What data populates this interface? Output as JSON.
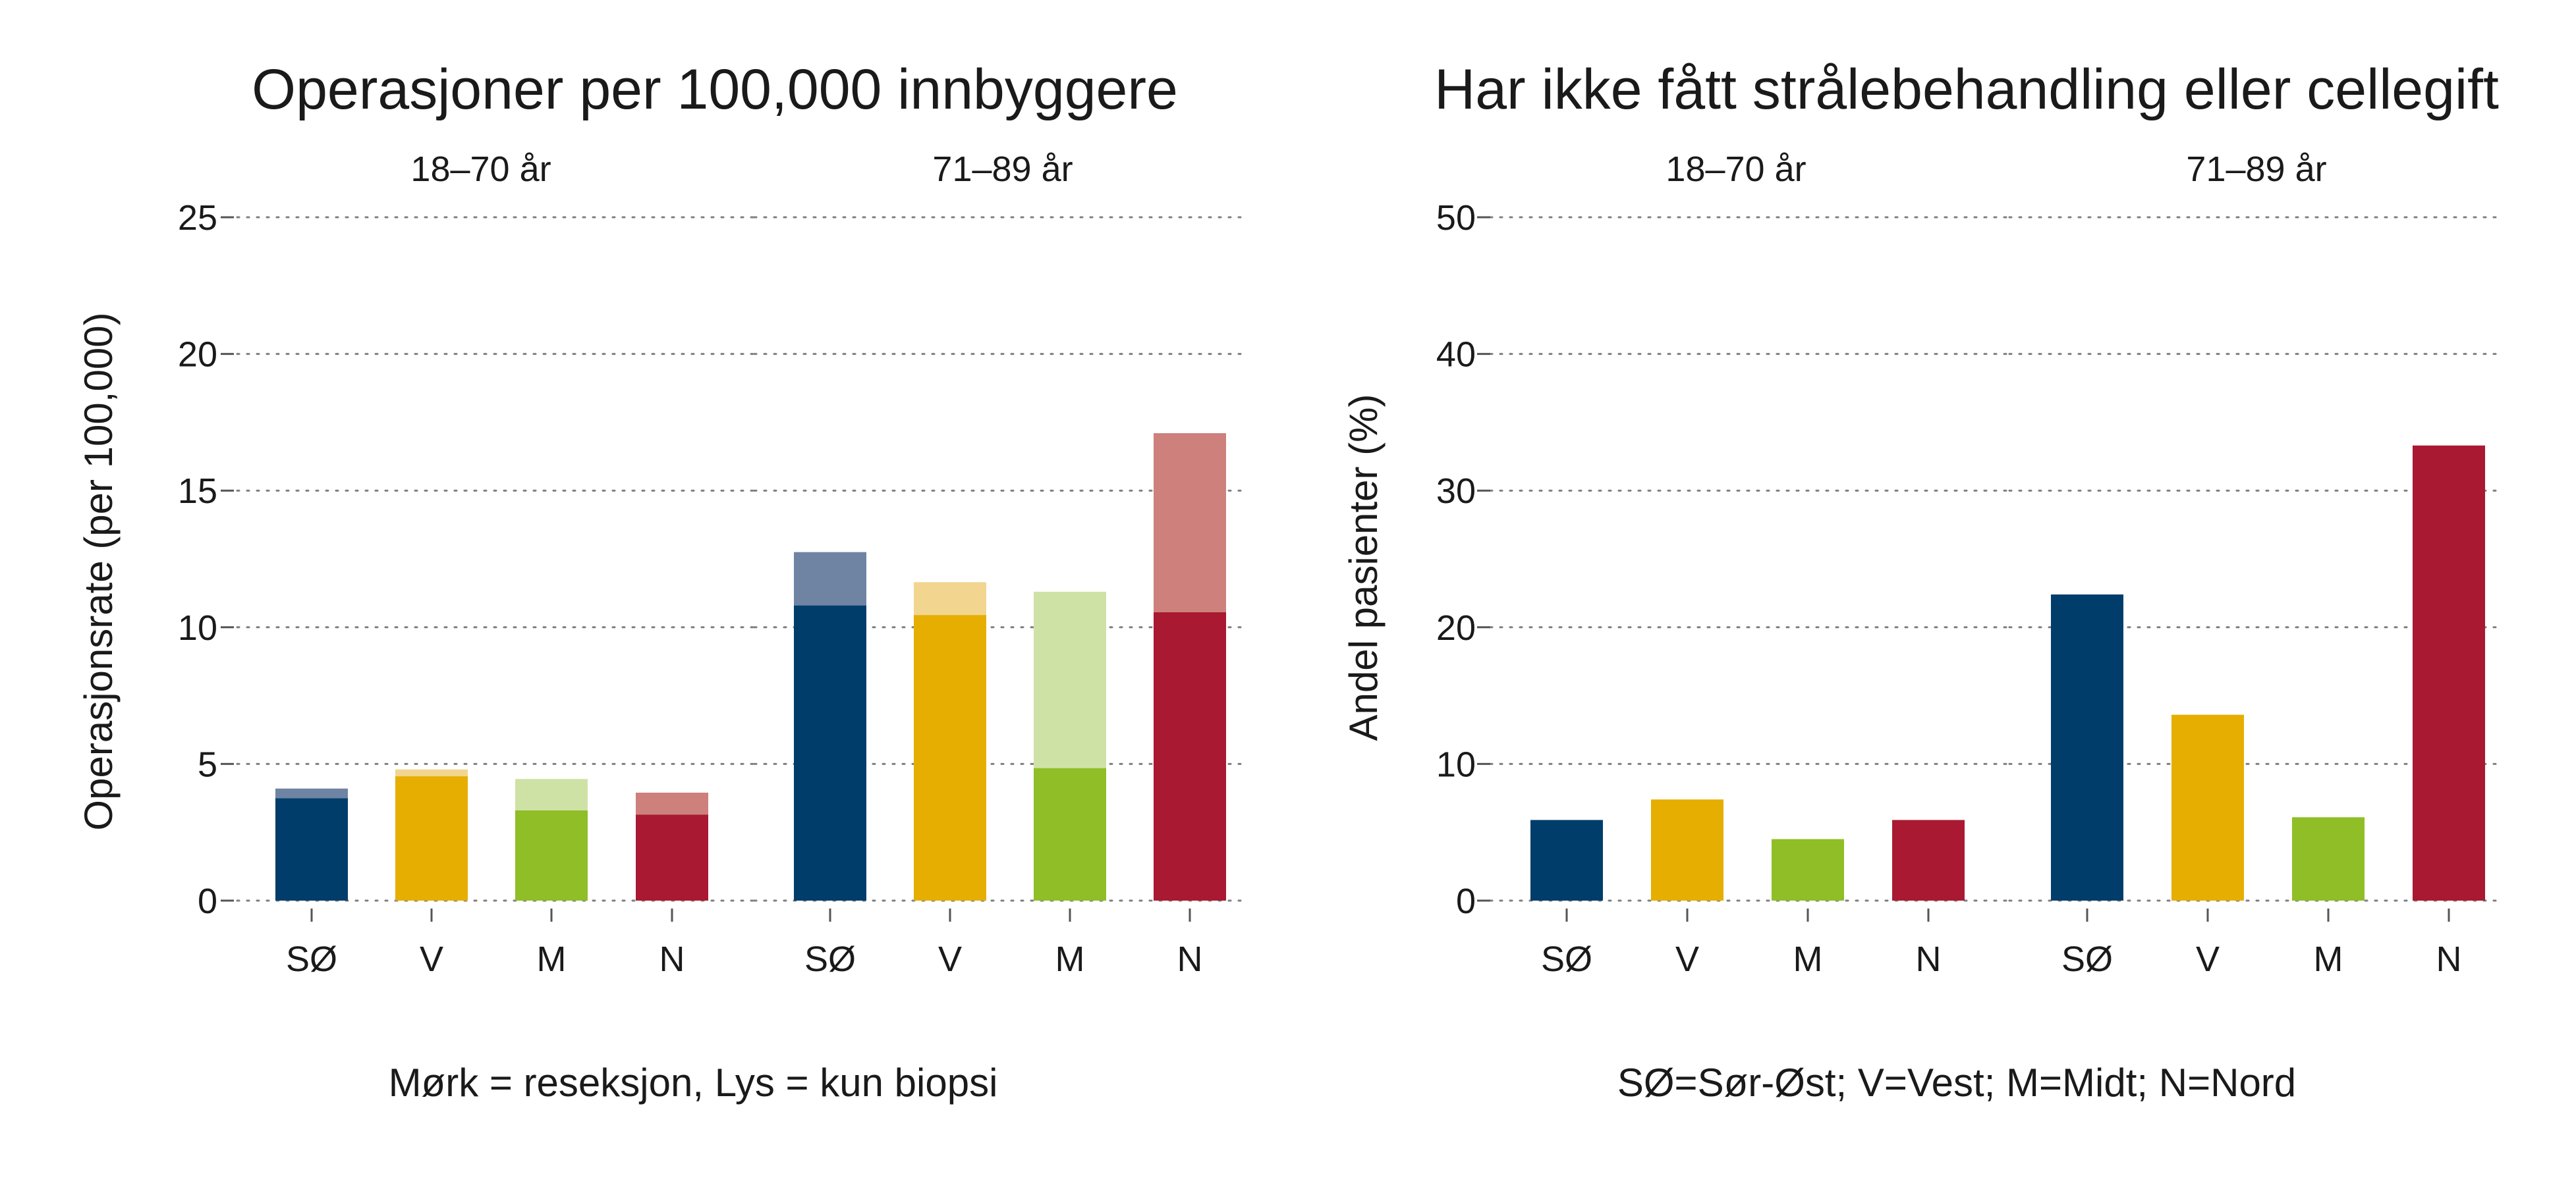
{
  "chart_data": [
    {
      "type": "bar",
      "stacked": true,
      "title": "Operasjoner per 100,000 innbyggere",
      "ylabel": "Operasjonsrate (per 100,000)",
      "caption": "Mørk = reseksjon, Lys = kun biopsi",
      "ylim": [
        0,
        25
      ],
      "yticks": [
        0,
        5,
        10,
        15,
        20,
        25
      ],
      "grid": true,
      "categories": [
        "SØ",
        "V",
        "M",
        "N"
      ],
      "facets": [
        {
          "label": "18–70 år",
          "series": [
            {
              "values": [
                3.75,
                4.55,
                3.3,
                3.15
              ]
            },
            {
              "values": [
                0.35,
                0.25,
                1.15,
                0.8
              ]
            }
          ]
        },
        {
          "label": "71–89 år",
          "series": [
            {
              "values": [
                10.8,
                10.45,
                4.85,
                10.55
              ]
            },
            {
              "values": [
                1.95,
                1.2,
                6.45,
                6.55
              ]
            }
          ]
        }
      ],
      "colors": {
        "dark": [
          "#003d6b",
          "#e5ae00",
          "#8fbe27",
          "#a91932"
        ],
        "light": [
          "#6f84a3",
          "#f2d690",
          "#cfe2a6",
          "#cd807c"
        ]
      }
    },
    {
      "type": "bar",
      "title": "Har ikke fått strålebehandling eller cellegift",
      "ylabel": "Andel pasienter (%)",
      "caption": "SØ=Sør-Øst; V=Vest; M=Midt; N=Nord",
      "ylim": [
        0,
        50
      ],
      "yticks": [
        0,
        10,
        20,
        30,
        40,
        50
      ],
      "grid": true,
      "categories": [
        "SØ",
        "V",
        "M",
        "N"
      ],
      "facets": [
        {
          "label": "18–70 år",
          "series": [
            {
              "values": [
                5.9,
                7.4,
                4.5,
                5.9
              ]
            }
          ]
        },
        {
          "label": "71–89 år",
          "series": [
            {
              "values": [
                22.4,
                13.6,
                6.1,
                33.3
              ]
            }
          ]
        }
      ],
      "colors": {
        "dark": [
          "#003d6b",
          "#e5ae00",
          "#8fbe27",
          "#a91932"
        ]
      }
    }
  ]
}
